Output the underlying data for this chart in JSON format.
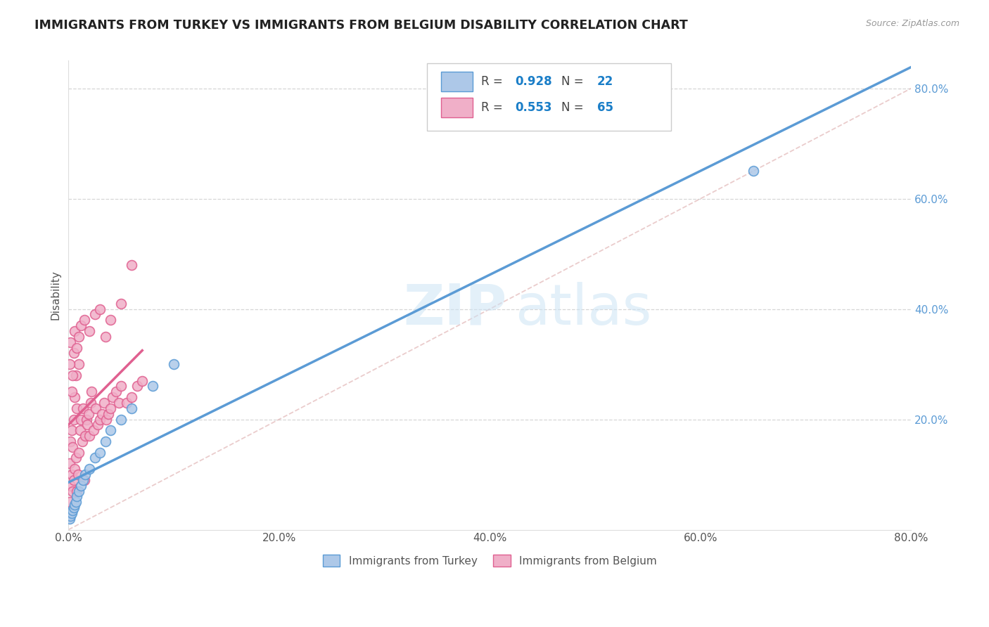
{
  "title": "IMMIGRANTS FROM TURKEY VS IMMIGRANTS FROM BELGIUM DISABILITY CORRELATION CHART",
  "source": "Source: ZipAtlas.com",
  "ylabel": "Disability",
  "xlim": [
    0.0,
    0.8
  ],
  "ylim": [
    0.0,
    0.85
  ],
  "xticks": [
    0.0,
    0.2,
    0.4,
    0.6,
    0.8
  ],
  "yticks": [
    0.2,
    0.4,
    0.6,
    0.8
  ],
  "xticklabels": [
    "0.0%",
    "20.0%",
    "40.0%",
    "60.0%",
    "80.0%"
  ],
  "yticklabels": [
    "20.0%",
    "40.0%",
    "60.0%",
    "80.0%"
  ],
  "turkey_color": "#5b9bd5",
  "turkey_face": "#adc8e8",
  "belgium_color": "#e06090",
  "belgium_face": "#f0afc8",
  "R_turkey": 0.928,
  "N_turkey": 22,
  "R_belgium": 0.553,
  "N_belgium": 65,
  "legend_turkey": "Immigrants from Turkey",
  "legend_belgium": "Immigrants from Belgium",
  "watermark_zip": "ZIP",
  "watermark_atlas": "atlas",
  "ytick_color": "#5b9bd5",
  "grid_color": "#cccccc",
  "turkey_x": [
    0.001,
    0.002,
    0.003,
    0.004,
    0.005,
    0.006,
    0.007,
    0.008,
    0.01,
    0.012,
    0.014,
    0.016,
    0.02,
    0.025,
    0.03,
    0.035,
    0.04,
    0.05,
    0.06,
    0.08,
    0.1,
    0.65
  ],
  "turkey_y": [
    0.02,
    0.025,
    0.03,
    0.035,
    0.04,
    0.045,
    0.05,
    0.06,
    0.07,
    0.08,
    0.09,
    0.1,
    0.11,
    0.13,
    0.14,
    0.16,
    0.18,
    0.2,
    0.22,
    0.26,
    0.3,
    0.65
  ],
  "belgium_x": [
    0.001,
    0.001,
    0.002,
    0.002,
    0.003,
    0.003,
    0.004,
    0.004,
    0.005,
    0.005,
    0.006,
    0.006,
    0.007,
    0.007,
    0.008,
    0.008,
    0.009,
    0.01,
    0.01,
    0.011,
    0.012,
    0.013,
    0.014,
    0.015,
    0.016,
    0.017,
    0.018,
    0.019,
    0.02,
    0.021,
    0.022,
    0.024,
    0.026,
    0.028,
    0.03,
    0.032,
    0.034,
    0.036,
    0.038,
    0.04,
    0.042,
    0.045,
    0.048,
    0.05,
    0.055,
    0.06,
    0.065,
    0.07,
    0.001,
    0.002,
    0.003,
    0.004,
    0.005,
    0.006,
    0.008,
    0.01,
    0.012,
    0.015,
    0.02,
    0.025,
    0.03,
    0.035,
    0.04,
    0.05,
    0.06
  ],
  "belgium_y": [
    0.05,
    0.12,
    0.08,
    0.16,
    0.1,
    0.18,
    0.07,
    0.15,
    0.09,
    0.2,
    0.11,
    0.24,
    0.13,
    0.28,
    0.07,
    0.22,
    0.1,
    0.14,
    0.3,
    0.18,
    0.2,
    0.16,
    0.22,
    0.09,
    0.17,
    0.2,
    0.19,
    0.21,
    0.17,
    0.23,
    0.25,
    0.18,
    0.22,
    0.19,
    0.2,
    0.21,
    0.23,
    0.2,
    0.21,
    0.22,
    0.24,
    0.25,
    0.23,
    0.26,
    0.23,
    0.24,
    0.26,
    0.27,
    0.3,
    0.34,
    0.25,
    0.28,
    0.32,
    0.36,
    0.33,
    0.35,
    0.37,
    0.38,
    0.36,
    0.39,
    0.4,
    0.35,
    0.38,
    0.41,
    0.48
  ]
}
